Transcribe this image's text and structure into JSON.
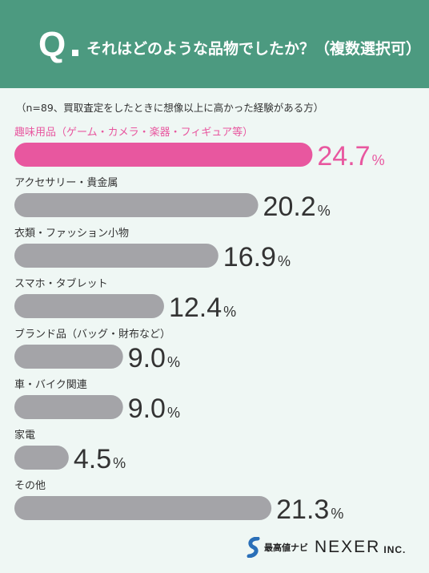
{
  "header": {
    "q_mark": "Q",
    "question": "それはどのような品物でしたか？（複数選択可）"
  },
  "note": "（n=89、買取査定をしたときに想像以上に高かった経験がある方）",
  "colors": {
    "highlight": "#e8579f",
    "bar": "#a4a4a8",
    "header": "#4c9a80"
  },
  "chart_data": {
    "type": "bar",
    "orientation": "horizontal",
    "unit": "%",
    "categories": [
      "趣味用品（ゲーム・カメラ・楽器・フィギュア等）",
      "アクセサリー・貴金属",
      "衣類・ファッション小物",
      "スマホ・タブレット",
      "ブランド品（バッグ・財布など）",
      "車・バイク関連",
      "家電",
      "その他"
    ],
    "values": [
      24.7,
      20.2,
      16.9,
      12.4,
      9.0,
      9.0,
      4.5,
      21.3
    ],
    "value_labels": [
      "24.7",
      "20.2",
      "16.9",
      "12.4",
      "9.0",
      "9.0",
      "4.5",
      "21.3"
    ],
    "highlight_index": 0,
    "xlim": [
      0,
      26
    ]
  },
  "logo": {
    "navi": "最高値ナビ",
    "brand": "NEXER",
    "suffix": "INC."
  }
}
